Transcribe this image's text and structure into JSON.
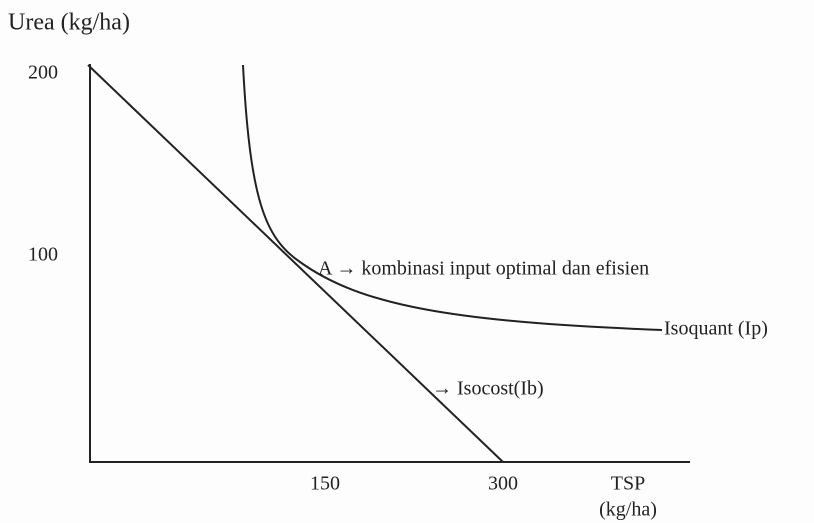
{
  "title": "Urea (kg/ha)",
  "y_ticks": [
    "200",
    "100"
  ],
  "x_ticks": [
    "150",
    "300"
  ],
  "x_axis_label": [
    "TSP",
    "(kg/ha)"
  ],
  "annotations": {
    "point": "A → kombinasi input optimal dan efisien",
    "isoquant": "Isoquant (Ip)",
    "isocost": "→ Isocost(Ib)"
  }
}
